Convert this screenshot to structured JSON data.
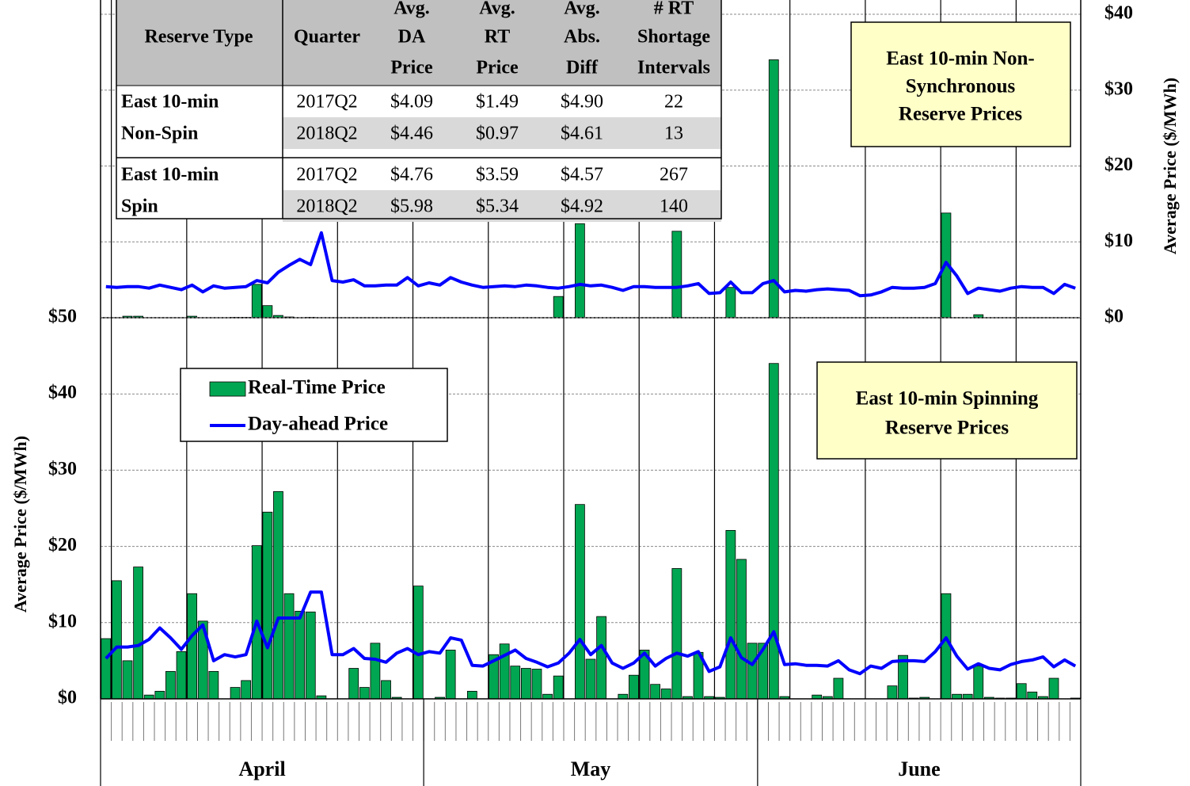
{
  "chart_data": [
    {
      "type": "combo",
      "note_lines": [
        "East 10-min Non-",
        "Synchronous",
        "Reserve Prices"
      ],
      "ylabel": "Average Price ($/MWh)",
      "yaxis_position": "right",
      "categories": [
        null,
        null,
        null,
        null,
        null,
        null,
        null,
        null,
        null,
        null,
        null,
        null,
        null,
        null,
        null,
        null,
        null,
        null,
        null,
        null,
        null,
        null,
        null,
        null,
        null,
        null,
        null,
        null,
        null,
        null,
        null,
        null,
        null,
        null,
        null,
        null,
        null,
        null,
        null,
        null,
        null,
        null,
        null,
        null,
        null,
        null,
        null,
        null,
        null,
        null,
        null,
        null,
        null,
        null,
        null,
        null,
        null,
        null,
        null,
        null,
        null,
        null,
        null,
        null,
        null,
        null,
        null,
        null,
        null,
        null,
        null,
        null,
        null,
        null,
        null,
        null,
        null,
        null,
        null,
        null,
        null,
        null,
        null,
        null,
        null,
        null,
        null,
        null,
        null,
        null,
        null
      ],
      "ylim": [
        0,
        40
      ],
      "yticks": [
        {
          "value": 0,
          "label": "$0"
        },
        {
          "value": 10,
          "label": "$10"
        },
        {
          "value": 20,
          "label": "$20"
        },
        {
          "value": 30,
          "label": "$30"
        },
        {
          "value": 40,
          "label": "$40"
        }
      ],
      "grid": true,
      "series": [
        {
          "kind": "bar",
          "color": "#00a651",
          "values": [
            0,
            0,
            0.2,
            0.2,
            0,
            0,
            0,
            0,
            0.2,
            0,
            0,
            0,
            0.05,
            0.05,
            4.4,
            1.6,
            0.3,
            0.1,
            0,
            0.05,
            0,
            0,
            0,
            0,
            0,
            0,
            0,
            0,
            0,
            0,
            0,
            0,
            0,
            0,
            0,
            0,
            0,
            0,
            0,
            0,
            0,
            0,
            2.8,
            0,
            12.4,
            0,
            0,
            0,
            0,
            0,
            0,
            0,
            0,
            11.4,
            0,
            0,
            0,
            0,
            4.0,
            0,
            0,
            0,
            34.0,
            0,
            0,
            0,
            0,
            0,
            0,
            0,
            0,
            0,
            0,
            0,
            0,
            0,
            0,
            0,
            13.8,
            0,
            0,
            0.4,
            0,
            0,
            0,
            0,
            0,
            0,
            0,
            0,
            0
          ]
        },
        {
          "kind": "line",
          "color": "#0000ff",
          "values": [
            4.1,
            4.0,
            4.1,
            4.1,
            3.9,
            4.3,
            4.0,
            3.7,
            4.3,
            3.4,
            4.2,
            3.9,
            4.0,
            4.1,
            4.9,
            4.6,
            6.0,
            6.9,
            7.7,
            7.0,
            11.2,
            4.9,
            4.7,
            5.0,
            4.2,
            4.2,
            4.3,
            4.3,
            5.3,
            4.2,
            4.6,
            4.3,
            5.3,
            4.7,
            4.3,
            4.0,
            4.1,
            4.2,
            4.1,
            4.3,
            4.2,
            4.0,
            3.9,
            4.1,
            4.4,
            4.2,
            4.3,
            4.0,
            3.6,
            4.1,
            4.1,
            4.0,
            4.0,
            4.0,
            4.2,
            4.5,
            3.2,
            3.3,
            4.7,
            3.3,
            3.3,
            4.5,
            4.9,
            3.4,
            3.6,
            3.5,
            3.7,
            3.8,
            3.7,
            3.6,
            2.9,
            3.0,
            3.4,
            4.0,
            3.9,
            3.9,
            4.0,
            4.5,
            7.3,
            5.5,
            3.2,
            3.9,
            3.7,
            3.5,
            3.9,
            4.1,
            4.0,
            4.0,
            3.2,
            4.4,
            3.9
          ]
        }
      ]
    },
    {
      "type": "combo",
      "note_lines": [
        "East 10-min Spinning",
        "Reserve Prices"
      ],
      "ylabel": "Average Price ($/MWh)",
      "yaxis_position": "left",
      "categories": [
        null,
        null,
        null,
        null,
        null,
        null,
        null,
        null,
        null,
        null,
        null,
        null,
        null,
        null,
        null,
        null,
        null,
        null,
        null,
        null,
        null,
        null,
        null,
        null,
        null,
        null,
        null,
        null,
        null,
        null,
        null,
        null,
        null,
        null,
        null,
        null,
        null,
        null,
        null,
        null,
        null,
        null,
        null,
        null,
        null,
        null,
        null,
        null,
        null,
        null,
        null,
        null,
        null,
        null,
        null,
        null,
        null,
        null,
        null,
        null,
        null,
        null,
        null,
        null,
        null,
        null,
        null,
        null,
        null,
        null,
        null,
        null,
        null,
        null,
        null,
        null,
        null,
        null,
        null,
        null,
        null,
        null,
        null,
        null,
        null,
        null,
        null,
        null,
        null,
        null,
        null
      ],
      "groups": [
        {
          "label": "April",
          "span": 30
        },
        {
          "label": "May",
          "span": 31
        },
        {
          "label": "June",
          "span": 30
        }
      ],
      "ylim": [
        0,
        50
      ],
      "yticks": [
        {
          "value": 0,
          "label": "$0"
        },
        {
          "value": 10,
          "label": "$10"
        },
        {
          "value": 20,
          "label": "$20"
        },
        {
          "value": 30,
          "label": "$30"
        },
        {
          "value": 40,
          "label": "$40"
        },
        {
          "value": 50,
          "label": "$50"
        }
      ],
      "grid": true,
      "legend": "upper left",
      "series": [
        {
          "name": "Real-Time Price",
          "kind": "bar",
          "color": "#00a651",
          "values": [
            7.9,
            15.5,
            5.0,
            17.3,
            0.5,
            1.0,
            3.6,
            6.2,
            13.8,
            10.2,
            3.6,
            0,
            1.5,
            2.4,
            20.1,
            24.5,
            27.2,
            13.8,
            11.5,
            11.4,
            0.4,
            0,
            0,
            4.0,
            1.5,
            7.3,
            2.4,
            0.2,
            0,
            14.8,
            0,
            0.2,
            6.4,
            0,
            1.0,
            0,
            5.8,
            7.2,
            4.3,
            4.0,
            3.9,
            0.6,
            3.0,
            0,
            25.5,
            5.2,
            10.8,
            0,
            0.6,
            3.1,
            6.4,
            1.9,
            1.3,
            17.1,
            0.3,
            6.1,
            0.3,
            0.2,
            22.1,
            18.3,
            7.3,
            7.3,
            44.0,
            0.3,
            0,
            0,
            0.5,
            0.3,
            2.7,
            0,
            0,
            0,
            0,
            1.7,
            5.7,
            0.1,
            0.2,
            0,
            13.8,
            0.6,
            0.6,
            4.3,
            0.2,
            0.1,
            0.1,
            2.0,
            0.9,
            0.3,
            2.7,
            0,
            0.1
          ]
        },
        {
          "name": "Day-ahead Price",
          "kind": "line",
          "color": "#0000ff",
          "values": [
            5.3,
            6.8,
            6.8,
            7.0,
            7.8,
            9.3,
            8.0,
            6.5,
            8.3,
            9.7,
            5.0,
            5.8,
            5.5,
            5.8,
            10.2,
            6.7,
            10.6,
            10.6,
            10.6,
            14.0,
            14.0,
            5.8,
            5.8,
            6.6,
            5.3,
            5.2,
            4.8,
            6.0,
            6.6,
            5.8,
            6.2,
            6.0,
            8.0,
            7.7,
            4.4,
            4.3,
            5.0,
            5.7,
            6.4,
            5.3,
            4.8,
            4.2,
            4.7,
            6.0,
            7.8,
            5.8,
            7.0,
            4.7,
            4.0,
            4.7,
            6.0,
            4.3,
            5.3,
            6.0,
            5.6,
            6.2,
            3.6,
            4.2,
            8.0,
            5.4,
            4.5,
            6.5,
            8.8,
            4.5,
            4.6,
            4.4,
            4.4,
            4.3,
            5.0,
            3.8,
            3.3,
            4.3,
            4.0,
            4.9,
            5.0,
            5.0,
            4.9,
            6.2,
            8.0,
            5.6,
            3.9,
            4.6,
            4.0,
            3.8,
            4.5,
            4.9,
            5.1,
            5.5,
            4.2,
            5.1,
            4.3
          ]
        }
      ]
    }
  ],
  "table": {
    "header": [
      [
        "Reserve Type"
      ],
      [
        "Quarter"
      ],
      [
        "Avg.",
        "DA",
        "Price"
      ],
      [
        "Avg.",
        "RT",
        "Price"
      ],
      [
        "Avg.",
        "Abs.",
        "Diff"
      ],
      [
        "# RT",
        "Shortage",
        "Intervals"
      ]
    ],
    "groups": [
      {
        "label_lines": [
          "East 10-min",
          "Non-Spin"
        ],
        "rows": [
          [
            "2017Q2",
            "$4.09",
            "$1.49",
            "$4.90",
            "22"
          ],
          [
            "2018Q2",
            "$4.46",
            "$0.97",
            "$4.61",
            "13"
          ]
        ]
      },
      {
        "label_lines": [
          "East 10-min",
          "Spin"
        ],
        "rows": [
          [
            "2017Q2",
            "$4.76",
            "$3.59",
            "$4.57",
            "267"
          ],
          [
            "2018Q2",
            "$5.98",
            "$5.34",
            "$4.92",
            "140"
          ]
        ]
      }
    ]
  }
}
